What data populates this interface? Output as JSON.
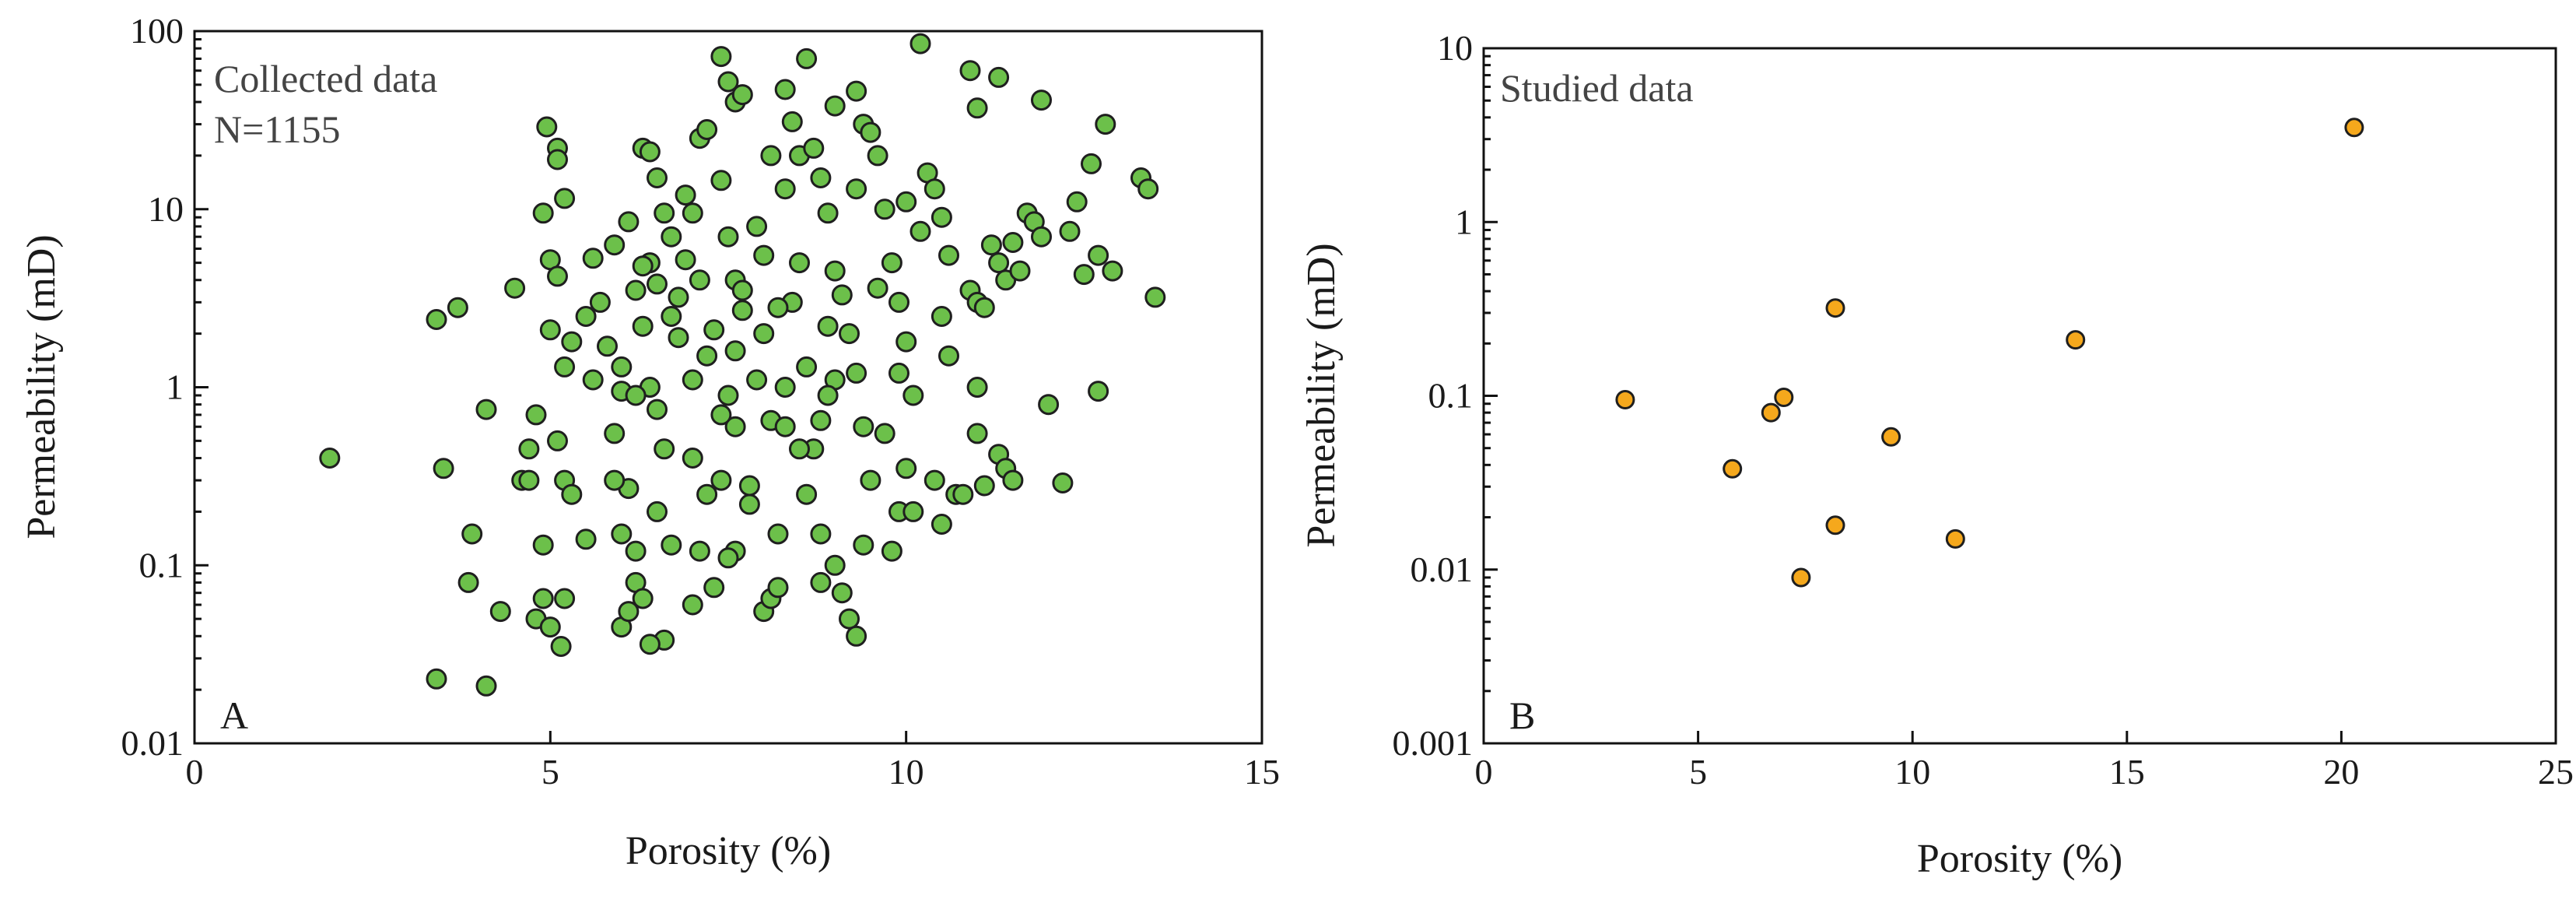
{
  "colors": {
    "collected_marker": "#6cc04a",
    "studied_marker": "#f5a81c",
    "marker_edge": "#1f1f1f"
  },
  "chart_data": [
    {
      "type": "scatter",
      "panel_label": "A",
      "annotation": [
        "Collected data",
        "N=1155"
      ],
      "xlabel": "Porosity (%)",
      "ylabel": "Permeability (mD)",
      "xlim": [
        0,
        15
      ],
      "ylim": [
        0.01,
        100
      ],
      "yscale": "log",
      "xticks": [
        0,
        5,
        10,
        15
      ],
      "xtick_labels": [
        "0",
        "5",
        "10",
        "15"
      ],
      "yticks": [
        0.01,
        0.1,
        1,
        10,
        100
      ],
      "ytick_labels": [
        "0.01",
        "0.1",
        "1",
        "10",
        "100"
      ],
      "grid": false,
      "marker_color": "#6cc04a",
      "points": [
        [
          1.9,
          0.4
        ],
        [
          3.4,
          2.4
        ],
        [
          3.7,
          2.8
        ],
        [
          3.5,
          0.35
        ],
        [
          3.4,
          0.023
        ],
        [
          4.1,
          0.021
        ],
        [
          3.9,
          0.15
        ],
        [
          3.85,
          0.08
        ],
        [
          4.1,
          0.75
        ],
        [
          4.5,
          3.6
        ],
        [
          4.3,
          0.055
        ],
        [
          4.6,
          0.3
        ],
        [
          4.7,
          0.45
        ],
        [
          4.8,
          0.7
        ],
        [
          4.9,
          9.5
        ],
        [
          4.95,
          29
        ],
        [
          5.1,
          22
        ],
        [
          5.1,
          19
        ],
        [
          5.2,
          11.5
        ],
        [
          5.0,
          5.2
        ],
        [
          5.1,
          4.2
        ],
        [
          5.2,
          1.3
        ],
        [
          5.0,
          2.1
        ],
        [
          5.3,
          1.8
        ],
        [
          5.1,
          0.5
        ],
        [
          5.2,
          0.3
        ],
        [
          4.9,
          0.13
        ],
        [
          4.8,
          0.05
        ],
        [
          5.0,
          0.045
        ],
        [
          4.9,
          0.065
        ],
        [
          5.15,
          0.035
        ],
        [
          5.2,
          0.065
        ],
        [
          5.3,
          0.25
        ],
        [
          5.5,
          0.14
        ],
        [
          5.6,
          5.3
        ],
        [
          5.7,
          3.0
        ],
        [
          5.8,
          1.7
        ],
        [
          5.9,
          6.3
        ],
        [
          6.0,
          0.95
        ],
        [
          5.9,
          0.55
        ],
        [
          6.0,
          0.045
        ],
        [
          6.1,
          0.055
        ],
        [
          6.2,
          0.08
        ],
        [
          6.3,
          0.065
        ],
        [
          6.0,
          0.15
        ],
        [
          6.1,
          0.27
        ],
        [
          6.2,
          0.12
        ],
        [
          6.3,
          22
        ],
        [
          6.4,
          21
        ],
        [
          6.5,
          15
        ],
        [
          6.6,
          9.5
        ],
        [
          6.7,
          7.0
        ],
        [
          6.4,
          5.0
        ],
        [
          6.2,
          3.5
        ],
        [
          6.3,
          2.2
        ],
        [
          6.4,
          1.0
        ],
        [
          6.5,
          0.75
        ],
        [
          6.6,
          0.45
        ],
        [
          6.5,
          0.2
        ],
        [
          6.6,
          0.038
        ],
        [
          6.4,
          0.036
        ],
        [
          6.7,
          0.13
        ],
        [
          6.8,
          1.9
        ],
        [
          6.9,
          5.2
        ],
        [
          7.0,
          9.5
        ],
        [
          7.1,
          25
        ],
        [
          7.2,
          28
        ],
        [
          7.1,
          4.0
        ],
        [
          7.2,
          1.5
        ],
        [
          7.0,
          0.06
        ],
        [
          7.3,
          0.075
        ],
        [
          7.2,
          0.25
        ],
        [
          7.4,
          72
        ],
        [
          7.5,
          52
        ],
        [
          7.6,
          40
        ],
        [
          7.7,
          44
        ],
        [
          7.4,
          14.5
        ],
        [
          7.5,
          7.0
        ],
        [
          7.6,
          4.0
        ],
        [
          7.7,
          2.7
        ],
        [
          7.5,
          0.9
        ],
        [
          7.6,
          0.6
        ],
        [
          7.4,
          0.3
        ],
        [
          7.6,
          0.12
        ],
        [
          7.5,
          0.11
        ],
        [
          7.8,
          0.22
        ],
        [
          7.9,
          1.1
        ],
        [
          8.0,
          2.0
        ],
        [
          8.1,
          0.65
        ],
        [
          8.0,
          0.055
        ],
        [
          8.1,
          0.065
        ],
        [
          8.2,
          0.075
        ],
        [
          8.2,
          0.15
        ],
        [
          8.3,
          0.6
        ],
        [
          8.4,
          3.0
        ],
        [
          8.5,
          5.0
        ],
        [
          8.3,
          13
        ],
        [
          8.4,
          31
        ],
        [
          8.3,
          47
        ],
        [
          8.5,
          20
        ],
        [
          8.6,
          70
        ],
        [
          8.7,
          22
        ],
        [
          8.8,
          15
        ],
        [
          8.9,
          9.5
        ],
        [
          9.0,
          4.5
        ],
        [
          8.9,
          2.2
        ],
        [
          9.0,
          1.1
        ],
        [
          8.8,
          0.65
        ],
        [
          8.7,
          0.45
        ],
        [
          8.6,
          0.25
        ],
        [
          8.8,
          0.15
        ],
        [
          9.0,
          0.1
        ],
        [
          9.1,
          0.07
        ],
        [
          9.2,
          0.05
        ],
        [
          9.3,
          0.04
        ],
        [
          9.4,
          0.13
        ],
        [
          9.5,
          0.3
        ],
        [
          9.4,
          0.6
        ],
        [
          9.3,
          1.2
        ],
        [
          9.2,
          2.0
        ],
        [
          9.3,
          13
        ],
        [
          9.4,
          30
        ],
        [
          9.3,
          46
        ],
        [
          9.5,
          27
        ],
        [
          9.6,
          20
        ],
        [
          9.7,
          10
        ],
        [
          9.8,
          5.0
        ],
        [
          9.9,
          3.0
        ],
        [
          10.0,
          1.8
        ],
        [
          10.1,
          0.9
        ],
        [
          10.0,
          0.35
        ],
        [
          9.9,
          0.2
        ],
        [
          10.1,
          0.2
        ],
        [
          10.2,
          85
        ],
        [
          10.3,
          16
        ],
        [
          10.4,
          13
        ],
        [
          10.5,
          9.0
        ],
        [
          10.6,
          5.5
        ],
        [
          10.5,
          2.5
        ],
        [
          10.6,
          1.5
        ],
        [
          10.4,
          0.3
        ],
        [
          10.5,
          0.17
        ],
        [
          10.7,
          0.25
        ],
        [
          10.8,
          0.25
        ],
        [
          10.9,
          60
        ],
        [
          11.0,
          37
        ],
        [
          11.3,
          55
        ],
        [
          10.9,
          3.5
        ],
        [
          11.0,
          3.0
        ],
        [
          11.1,
          2.8
        ],
        [
          11.0,
          1.0
        ],
        [
          11.0,
          0.55
        ],
        [
          11.1,
          0.28
        ],
        [
          11.2,
          6.3
        ],
        [
          11.3,
          5.0
        ],
        [
          11.4,
          4.0
        ],
        [
          11.3,
          0.42
        ],
        [
          11.4,
          0.35
        ],
        [
          11.7,
          9.5
        ],
        [
          11.8,
          8.5
        ],
        [
          11.9,
          7.0
        ],
        [
          11.6,
          4.5
        ],
        [
          11.5,
          0.3
        ],
        [
          11.9,
          41
        ],
        [
          12.0,
          0.8
        ],
        [
          12.2,
          0.29
        ],
        [
          12.3,
          7.5
        ],
        [
          12.4,
          11
        ],
        [
          12.5,
          4.3
        ],
        [
          12.6,
          18
        ],
        [
          12.7,
          5.5
        ],
        [
          12.8,
          30
        ],
        [
          12.9,
          4.5
        ],
        [
          12.7,
          0.95
        ],
        [
          13.3,
          15
        ],
        [
          13.4,
          13
        ],
        [
          13.5,
          3.2
        ],
        [
          5.6,
          1.1
        ],
        [
          6.0,
          1.3
        ],
        [
          6.3,
          4.8
        ],
        [
          6.8,
          3.2
        ],
        [
          7.0,
          1.1
        ],
        [
          7.3,
          2.1
        ],
        [
          7.7,
          3.5
        ],
        [
          8.0,
          5.5
        ],
        [
          8.2,
          2.8
        ],
        [
          8.6,
          1.3
        ],
        [
          9.1,
          3.3
        ],
        [
          9.6,
          3.6
        ],
        [
          10.2,
          7.5
        ],
        [
          7.9,
          8.0
        ],
        [
          6.1,
          8.5
        ],
        [
          6.9,
          12
        ],
        [
          8.1,
          20
        ],
        [
          9.0,
          38
        ],
        [
          6.5,
          3.8
        ],
        [
          7.0,
          0.4
        ],
        [
          7.8,
          0.28
        ],
        [
          8.5,
          0.45
        ],
        [
          9.7,
          0.55
        ],
        [
          5.5,
          2.5
        ],
        [
          4.7,
          0.3
        ],
        [
          6.2,
          0.9
        ],
        [
          7.4,
          0.7
        ],
        [
          8.9,
          0.9
        ],
        [
          10.0,
          11
        ],
        [
          11.5,
          6.5
        ],
        [
          9.9,
          1.2
        ],
        [
          7.6,
          1.6
        ],
        [
          6.7,
          2.5
        ],
        [
          8.3,
          1.0
        ],
        [
          5.9,
          0.3
        ],
        [
          7.1,
          0.12
        ],
        [
          8.8,
          0.08
        ],
        [
          9.8,
          0.12
        ]
      ]
    },
    {
      "type": "scatter",
      "panel_label": "B",
      "annotation": [
        "Studied data"
      ],
      "xlabel": "Porosity (%)",
      "ylabel": "Permeability (mD)",
      "xlim": [
        0,
        25
      ],
      "ylim": [
        0.001,
        10
      ],
      "yscale": "log",
      "xticks": [
        0,
        5,
        10,
        15,
        20,
        25
      ],
      "xtick_labels": [
        "0",
        "5",
        "10",
        "15",
        "20",
        "25"
      ],
      "yticks": [
        0.001,
        0.01,
        0.1,
        1,
        10
      ],
      "ytick_labels": [
        "0.001",
        "0.01",
        "0.1",
        "1",
        "10"
      ],
      "grid": false,
      "marker_color": "#f5a81c",
      "points": [
        [
          3.3,
          0.095
        ],
        [
          5.8,
          0.038
        ],
        [
          6.7,
          0.08
        ],
        [
          7.0,
          0.098
        ],
        [
          7.4,
          0.009
        ],
        [
          8.2,
          0.32
        ],
        [
          8.2,
          0.018
        ],
        [
          9.5,
          0.058
        ],
        [
          11.0,
          0.015
        ],
        [
          13.8,
          0.21
        ],
        [
          20.3,
          3.5
        ]
      ]
    }
  ]
}
